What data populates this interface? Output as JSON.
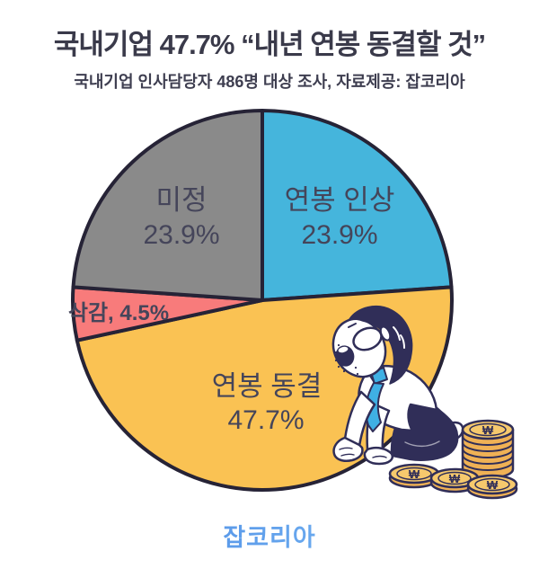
{
  "header": {
    "title": "국내기업 47.7% “내년 연봉 동결할 것”",
    "subtitle": "국내기업 인사담당자 486명 대상 조사, 자료제공: 잡코리아"
  },
  "chart_data": {
    "type": "pie",
    "title": "국내기업 47.7% “내년 연봉 동결할 것”",
    "subtitle": "국내기업 인사담당자 486명 대상 조사, 자료제공: 잡코리아",
    "unit": "%",
    "start_angle_deg": 0,
    "direction": "clockwise",
    "categories": [
      "연봉 인상",
      "연봉 동결",
      "삭감",
      "미정"
    ],
    "values": [
      23.9,
      47.7,
      4.5,
      23.9
    ],
    "colors": [
      "#45b5dc",
      "#fac253",
      "#f87b7b",
      "#8a8a8a"
    ],
    "outline_color": "#262336",
    "label_color": "#45455a",
    "label_texts": [
      "연봉 인상 23.9%",
      "연봉 동결 47.7%",
      "삭감, 4.5%",
      "미정 23.9%"
    ],
    "labels_inside": true,
    "legend": "none"
  },
  "illustration": {
    "coin_symbol": "₩",
    "description": "동전 더미 옆에 엎드려 절망하는 회사원"
  },
  "footer": {
    "logo_text": "잡코리아",
    "logo_color_start": "#3e7ce0",
    "logo_color_end": "#86c7f8"
  }
}
